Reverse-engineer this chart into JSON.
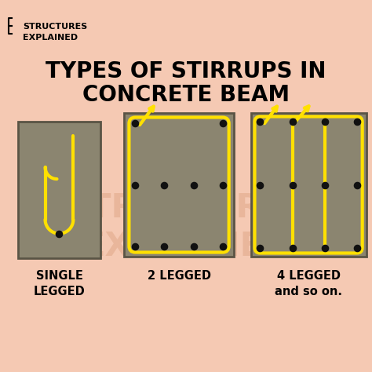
{
  "bg_color": "#F5C9B3",
  "beam_color": "#8B8570",
  "beam_border_color": "#5a5445",
  "stirrup_color": "#FFE000",
  "stirrup_lw": 3.0,
  "dot_color": "#111111",
  "dot_size": 35,
  "title_line1": "TYPES OF STIRRUPS IN",
  "title_line2": "CONCRETE BEAM",
  "title_fontsize": 20,
  "title_fontweight": "bold",
  "label1": "SINGLE\nLEGGED",
  "label2": "2 LEGGED",
  "label3": "4 LEGGED\nand so on.",
  "label_fontsize": 10.5,
  "watermark_color": "#E0A888",
  "watermark_fontsize": 30,
  "logo_text_line1": "STRUCTURES",
  "logo_text_line2": "EXPLAINED",
  "logo_fontsize": 8
}
